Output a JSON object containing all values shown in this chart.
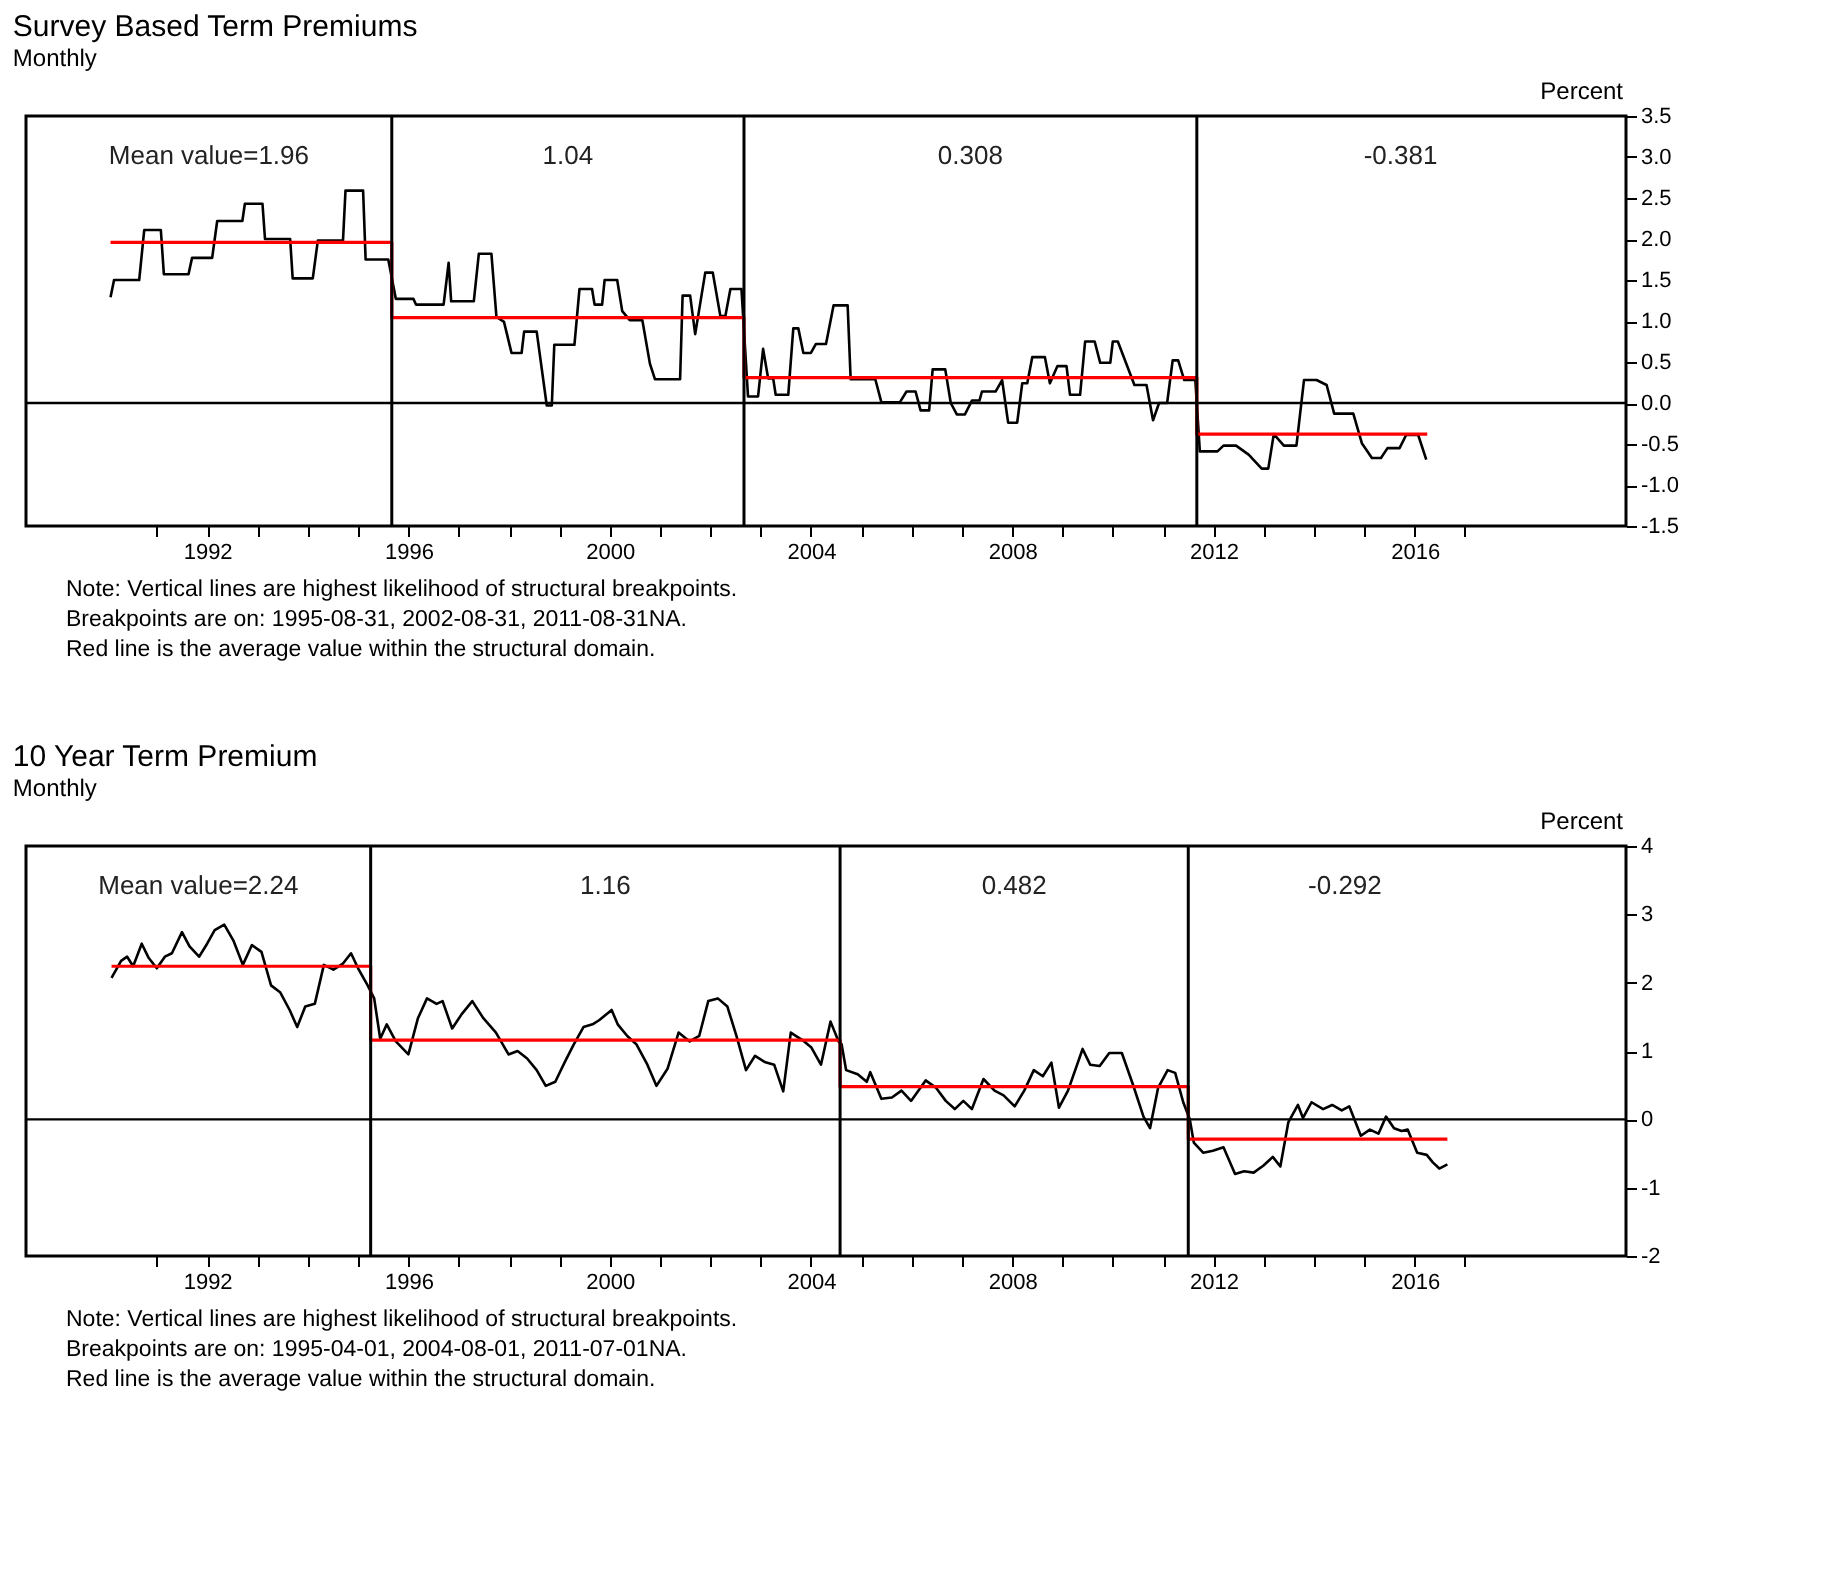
{
  "chart_data": [
    {
      "type": "line",
      "title": "Survey Based Term Premiums",
      "subtitle": "Monthly",
      "ylabel": "Percent",
      "xlim": [
        1988.4,
        2020.2
      ],
      "ylim": [
        -1.5,
        3.5
      ],
      "xticks": [
        {
          "value": 1991,
          "label": null
        },
        1992,
        {
          "value": 1993,
          "label": null
        },
        {
          "value": 1994,
          "label": null
        },
        {
          "value": 1995,
          "label": null
        },
        1996,
        {
          "value": 1997,
          "label": null
        },
        {
          "value": 1998,
          "label": null
        },
        {
          "value": 1999,
          "label": null
        },
        2000,
        {
          "value": 2001,
          "label": null
        },
        {
          "value": 2002,
          "label": null
        },
        {
          "value": 2003,
          "label": null
        },
        2004,
        {
          "value": 2005,
          "label": null
        },
        {
          "value": 2006,
          "label": null
        },
        {
          "value": 2007,
          "label": null
        },
        2008,
        {
          "value": 2009,
          "label": null
        },
        {
          "value": 2010,
          "label": null
        },
        {
          "value": 2011,
          "label": null
        },
        2012,
        {
          "value": 2013,
          "label": null
        },
        {
          "value": 2014,
          "label": null
        },
        {
          "value": 2015,
          "label": null
        },
        2016,
        {
          "value": 2017,
          "label": null
        }
      ],
      "yticks": [
        -1.5,
        {
          "value": -1,
          "label": "-1.0"
        },
        -0.5,
        {
          "value": 0,
          "label": "0.0"
        },
        0.5,
        {
          "value": 1,
          "label": "1.0"
        },
        1.5,
        {
          "value": 2,
          "label": "2.0"
        },
        2.5,
        {
          "value": 3,
          "label": "3.0"
        },
        3.5
      ],
      "grid": false,
      "series": [
        {
          "color": "#000000",
          "x": [
            1990.08,
            1990.15,
            1990.65,
            1990.75,
            1991.08,
            1991.14,
            1991.63,
            1991.7,
            1992.1,
            1992.2,
            1992.7,
            1992.75,
            1993.1,
            1993.15,
            1993.65,
            1993.7,
            1994.1,
            1994.2,
            1994.7,
            1994.75,
            1995.1,
            1995.15,
            1995.6,
            1995.75,
            1996.1,
            1996.15,
            1996.7,
            1996.8,
            1996.85,
            1997.3,
            1997.4,
            1997.65,
            1997.75,
            1997.9,
            1998.05,
            1998.25,
            1998.3,
            1998.55,
            1998.75,
            1998.85,
            1998.9,
            1999.3,
            1999.4,
            1999.65,
            1999.7,
            1999.85,
            1999.9,
            2000.15,
            2000.25,
            2000.4,
            2000.65,
            2000.8,
            2000.9,
            2001.4,
            2001.45,
            2001.6,
            2001.7,
            2001.9,
            2002.05,
            2002.2,
            2002.3,
            2002.4,
            2002.62,
            2002.75,
            2002.95,
            2003.05,
            2003.15,
            2003.25,
            2003.3,
            2003.55,
            2003.65,
            2003.75,
            2003.85,
            2004.0,
            2004.1,
            2004.3,
            2004.45,
            2004.73,
            2004.79,
            2005.28,
            2005.4,
            2005.77,
            2005.9,
            2006.08,
            2006.18,
            2006.35,
            2006.42,
            2006.67,
            2006.78,
            2006.9,
            2007.06,
            2007.2,
            2007.35,
            2007.4,
            2007.67,
            2007.8,
            2007.92,
            2008.1,
            2008.2,
            2008.3,
            2008.4,
            2008.65,
            2008.75,
            2008.9,
            2009.08,
            2009.15,
            2009.35,
            2009.45,
            2009.64,
            2009.75,
            2009.95,
            2010.0,
            2010.1,
            2010.43,
            2010.67,
            2010.8,
            2010.92,
            2011.08,
            2011.19,
            2011.3,
            2011.42,
            2011.64,
            2011.73,
            2012.08,
            2012.2,
            2012.45,
            2012.7,
            2012.96,
            2013.09,
            2013.2,
            2013.4,
            2013.65,
            2013.8,
            2014.05,
            2014.25,
            2014.4,
            2014.78,
            2014.95,
            2015.15,
            2015.33,
            2015.46,
            2015.7,
            2015.83,
            2016.07,
            2016.23
          ],
          "values": [
            1.29,
            1.5,
            1.5,
            2.11,
            2.11,
            1.57,
            1.57,
            1.77,
            1.77,
            2.22,
            2.22,
            2.43,
            2.43,
            2.0,
            2.0,
            1.52,
            1.52,
            1.98,
            1.98,
            2.59,
            2.59,
            1.75,
            1.75,
            1.27,
            1.27,
            1.2,
            1.2,
            1.71,
            1.24,
            1.24,
            1.82,
            1.82,
            1.05,
            0.99,
            0.61,
            0.61,
            0.87,
            0.87,
            -0.03,
            -0.03,
            0.71,
            0.71,
            1.39,
            1.39,
            1.2,
            1.2,
            1.5,
            1.5,
            1.12,
            1.01,
            1.01,
            0.48,
            0.29,
            0.29,
            1.31,
            1.31,
            0.84,
            1.59,
            1.59,
            1.06,
            1.06,
            1.39,
            1.39,
            0.08,
            0.08,
            0.66,
            0.3,
            0.3,
            0.1,
            0.1,
            0.91,
            0.91,
            0.61,
            0.61,
            0.72,
            0.72,
            1.19,
            1.19,
            0.29,
            0.29,
            0.01,
            0.01,
            0.14,
            0.14,
            -0.09,
            -0.09,
            0.41,
            0.41,
            0.0,
            -0.14,
            -0.14,
            0.03,
            0.03,
            0.14,
            0.14,
            0.28,
            -0.24,
            -0.24,
            0.24,
            0.24,
            0.56,
            0.56,
            0.24,
            0.45,
            0.45,
            0.1,
            0.1,
            0.75,
            0.75,
            0.49,
            0.49,
            0.75,
            0.75,
            0.22,
            0.22,
            -0.21,
            0.0,
            0.0,
            0.52,
            0.52,
            0.28,
            0.28,
            -0.59,
            -0.59,
            -0.52,
            -0.52,
            -0.63,
            -0.8,
            -0.8,
            -0.38,
            -0.52,
            -0.52,
            0.28,
            0.28,
            0.22,
            -0.13,
            -0.13,
            -0.49,
            -0.67,
            -0.67,
            -0.55,
            -0.55,
            -0.39,
            -0.39,
            -0.69
          ]
        },
        {
          "color": "#ff0000",
          "x": [
            1990.08,
            1995.67,
            1995.67,
            2002.67,
            2002.67,
            2011.67,
            2011.67,
            2016.25
          ],
          "values": [
            1.96,
            1.96,
            1.04,
            1.04,
            0.31,
            0.31,
            -0.38,
            -0.38
          ]
        }
      ],
      "ref_lines": [
        {
          "axis": "x",
          "value": 1995.67,
          "color": "#000000"
        },
        {
          "axis": "x",
          "value": 2002.67,
          "color": "#000000"
        },
        {
          "axis": "x",
          "value": 2011.67,
          "color": "#000000"
        },
        {
          "axis": "y",
          "value": 0,
          "color": "#000000"
        }
      ],
      "annotations": [
        "Mean value=1.96",
        "1.04",
        "0.308",
        "-0.381",
        "Note: Vertical lines are highest likelihood of structural breakpoints.",
        "Breakpoints are on: 1995-08-31, 2002-08-31, 2011-08-31NA.",
        "Red line is the average value within the  structural domain."
      ]
    },
    {
      "type": "line",
      "title": "10 Year Term Premium",
      "subtitle": "Monthly",
      "ylabel": "Percent",
      "xlim": [
        1988.4,
        2020.2
      ],
      "ylim": [
        -2,
        4
      ],
      "xticks": [
        {
          "value": 1991,
          "label": null
        },
        1992,
        {
          "value": 1993,
          "label": null
        },
        {
          "value": 1994,
          "label": null
        },
        {
          "value": 1995,
          "label": null
        },
        1996,
        {
          "value": 1997,
          "label": null
        },
        {
          "value": 1998,
          "label": null
        },
        {
          "value": 1999,
          "label": null
        },
        2000,
        {
          "value": 2001,
          "label": null
        },
        {
          "value": 2002,
          "label": null
        },
        {
          "value": 2003,
          "label": null
        },
        2004,
        {
          "value": 2005,
          "label": null
        },
        {
          "value": 2006,
          "label": null
        },
        {
          "value": 2007,
          "label": null
        },
        2008,
        {
          "value": 2009,
          "label": null
        },
        {
          "value": 2010,
          "label": null
        },
        {
          "value": 2011,
          "label": null
        },
        2012,
        {
          "value": 2013,
          "label": null
        },
        {
          "value": 2014,
          "label": null
        },
        {
          "value": 2015,
          "label": null
        },
        2016,
        {
          "value": 2017,
          "label": null
        }
      ],
      "yticks": [
        -2,
        -1,
        0,
        1,
        2,
        3,
        4
      ],
      "grid": false,
      "series": [
        {
          "color": "#000000",
          "x": [
            1990.1,
            1990.29,
            1990.41,
            1990.53,
            1990.7,
            1990.84,
            1991.0,
            1991.16,
            1991.3,
            1991.5,
            1991.65,
            1991.84,
            1992.0,
            1992.15,
            1992.34,
            1992.52,
            1992.71,
            1992.89,
            1993.08,
            1993.27,
            1993.45,
            1993.64,
            1993.79,
            1993.95,
            1994.14,
            1994.32,
            1994.51,
            1994.7,
            1994.86,
            1995.0,
            1995.19,
            1995.32,
            1995.44,
            1995.57,
            1995.75,
            1996.0,
            1996.19,
            1996.37,
            1996.56,
            1996.68,
            1996.87,
            1997.06,
            1997.27,
            1997.49,
            1997.74,
            1997.99,
            1998.17,
            1998.36,
            1998.55,
            1998.73,
            1998.92,
            1999.11,
            1999.29,
            1999.48,
            1999.66,
            1999.79,
            2000.04,
            2000.16,
            2000.35,
            2000.53,
            2000.75,
            2000.93,
            2001.15,
            2001.37,
            2001.59,
            2001.78,
            2001.96,
            2002.15,
            2002.34,
            2002.52,
            2002.71,
            2002.89,
            2003.08,
            2003.27,
            2003.45,
            2003.6,
            2003.83,
            2004.01,
            2004.2,
            2004.39,
            2004.55,
            2004.61,
            2004.7,
            2004.93,
            2005.11,
            2005.18,
            2005.4,
            2005.61,
            2005.8,
            2005.99,
            2006.28,
            2006.49,
            2006.68,
            2006.86,
            2007.03,
            2007.2,
            2007.43,
            2007.65,
            2007.83,
            2008.05,
            2008.24,
            2008.43,
            2008.61,
            2008.78,
            2008.93,
            2009.11,
            2009.4,
            2009.55,
            2009.74,
            2009.93,
            2010.18,
            2010.4,
            2010.61,
            2010.74,
            2010.9,
            2011.09,
            2011.24,
            2011.4,
            2011.53,
            2011.61,
            2011.8,
            2011.99,
            2012.2,
            2012.43,
            2012.61,
            2012.8,
            2012.99,
            2013.18,
            2013.33,
            2013.49,
            2013.68,
            2013.78,
            2013.95,
            2014.18,
            2014.36,
            2014.55,
            2014.7,
            2014.93,
            2015.11,
            2015.28,
            2015.43,
            2015.59,
            2015.74,
            2015.86,
            2016.05,
            2016.24,
            2016.36,
            2016.49,
            2016.65
          ],
          "values": [
            2.07,
            2.32,
            2.38,
            2.24,
            2.57,
            2.36,
            2.21,
            2.38,
            2.43,
            2.74,
            2.53,
            2.38,
            2.57,
            2.77,
            2.85,
            2.62,
            2.26,
            2.55,
            2.45,
            1.96,
            1.86,
            1.6,
            1.35,
            1.65,
            1.69,
            2.26,
            2.19,
            2.28,
            2.43,
            2.21,
            1.96,
            1.77,
            1.18,
            1.39,
            1.14,
            0.95,
            1.48,
            1.77,
            1.69,
            1.73,
            1.33,
            1.54,
            1.73,
            1.48,
            1.27,
            0.95,
            1.0,
            0.89,
            0.72,
            0.49,
            0.55,
            0.84,
            1.1,
            1.35,
            1.39,
            1.45,
            1.6,
            1.39,
            1.22,
            1.1,
            0.8,
            0.49,
            0.74,
            1.27,
            1.14,
            1.22,
            1.73,
            1.77,
            1.65,
            1.22,
            0.72,
            0.93,
            0.84,
            0.8,
            0.41,
            1.27,
            1.16,
            1.05,
            0.8,
            1.43,
            1.14,
            1.1,
            0.72,
            0.66,
            0.55,
            0.69,
            0.3,
            0.32,
            0.42,
            0.27,
            0.57,
            0.46,
            0.27,
            0.15,
            0.27,
            0.15,
            0.59,
            0.42,
            0.35,
            0.19,
            0.42,
            0.72,
            0.63,
            0.83,
            0.17,
            0.42,
            1.03,
            0.8,
            0.78,
            0.97,
            0.97,
            0.51,
            0.04,
            -0.13,
            0.46,
            0.72,
            0.68,
            0.25,
            0.0,
            -0.34,
            -0.49,
            -0.46,
            -0.41,
            -0.8,
            -0.76,
            -0.78,
            -0.68,
            -0.55,
            -0.69,
            -0.04,
            0.21,
            0.02,
            0.25,
            0.15,
            0.21,
            0.13,
            0.19,
            -0.24,
            -0.15,
            -0.21,
            0.04,
            -0.13,
            -0.17,
            -0.15,
            -0.49,
            -0.52,
            -0.63,
            -0.72,
            -0.66
          ]
        },
        {
          "color": "#ff0000",
          "x": [
            1990.1,
            1995.25,
            1995.25,
            2004.58,
            2004.58,
            2011.5,
            2011.5,
            2016.65
          ],
          "values": [
            2.24,
            2.24,
            1.16,
            1.16,
            0.48,
            0.48,
            -0.29,
            -0.29
          ]
        }
      ],
      "ref_lines": [
        {
          "axis": "x",
          "value": 1995.25,
          "color": "#000000"
        },
        {
          "axis": "x",
          "value": 2004.58,
          "color": "#000000"
        },
        {
          "axis": "x",
          "value": 2011.5,
          "color": "#000000"
        },
        {
          "axis": "y",
          "value": 0,
          "color": "#000000"
        }
      ],
      "annotations": [
        "Mean value=2.24",
        "1.16",
        "0.482",
        "-0.292",
        "Note: Vertical lines are highest likelihood of structural breakpoints.",
        "Breakpoints are on: 1995-04-01, 2004-08-01, 2011-07-01NA.",
        "Red line is the average value within the  structural domain."
      ]
    }
  ]
}
